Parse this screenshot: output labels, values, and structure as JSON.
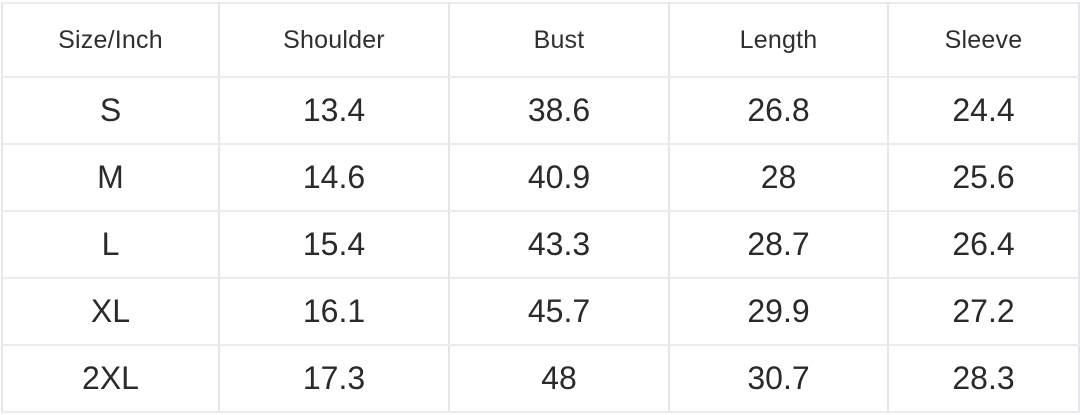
{
  "chart_data": {
    "type": "table",
    "columns": [
      "Size/Inch",
      "Shoulder",
      "Bust",
      "Length",
      "Sleeve"
    ],
    "rows": [
      [
        "S",
        "13.4",
        "38.6",
        "26.8",
        "24.4"
      ],
      [
        "M",
        "14.6",
        "40.9",
        "28",
        "25.6"
      ],
      [
        "L",
        "15.4",
        "43.3",
        "28.7",
        "26.4"
      ],
      [
        "XL",
        "16.1",
        "45.7",
        "29.9",
        "27.2"
      ],
      [
        "2XL",
        "17.3",
        "48",
        "30.7",
        "28.3"
      ]
    ]
  },
  "colors": {
    "background": "#ffffff",
    "grid_border": "#e4e6e9",
    "header_text": "#2f2f2f",
    "body_text": "#2a2a2a"
  }
}
